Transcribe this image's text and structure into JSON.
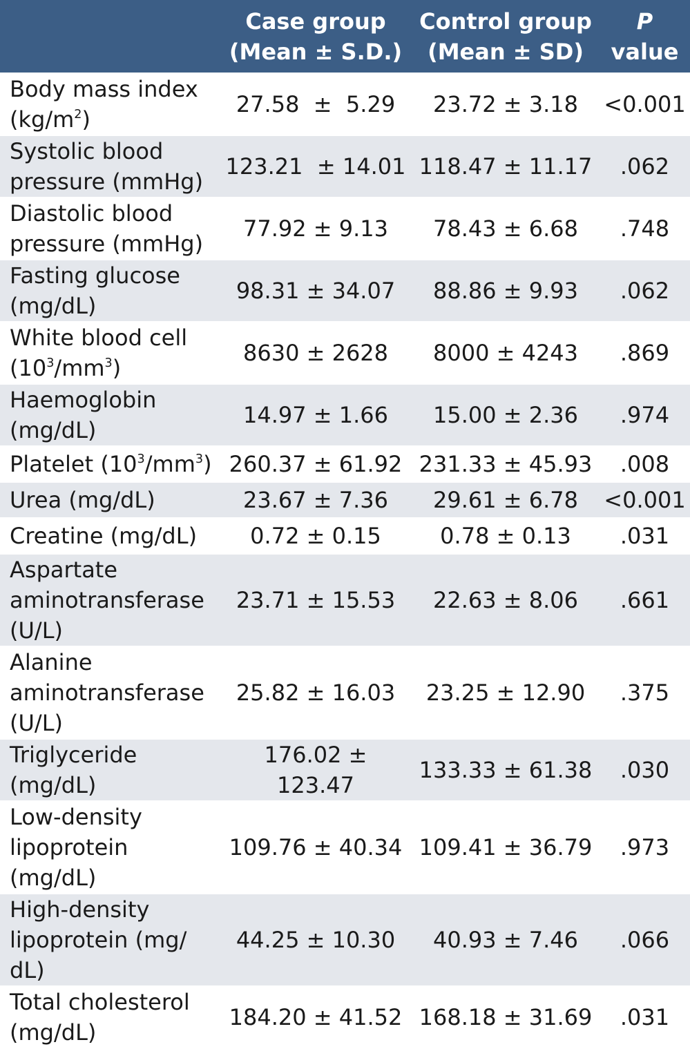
{
  "header": {
    "col0": "",
    "case_line1": "Case group",
    "case_line2": "(Mean ± S.D.)",
    "control_line1": "Control group",
    "control_line2": "(Mean  ± SD)",
    "p_line1": "P",
    "p_line2": "value"
  },
  "rows": [
    {
      "label": "Body mass index (kg/m²)",
      "case": "27.58  ±  5.29",
      "control": "23.72 ± 3.18",
      "p": "<0.001"
    },
    {
      "label": "Systolic blood pressure (mmHg)",
      "case": "123.21  ± 14.01",
      "control": "118.47 ± 11.17",
      "p": ".062"
    },
    {
      "label": "Diastolic blood pressure (mmHg)",
      "case": "77.92 ± 9.13",
      "control": "78.43 ± 6.68",
      "p": ".748"
    },
    {
      "label": "Fasting glucose (mg/dL)",
      "case": "98.31 ± 34.07",
      "control": "88.86 ± 9.93",
      "p": ".062"
    },
    {
      "label": "White blood cell (10³/mm³)",
      "case": "8630 ± 2628",
      "control": "8000 ± 4243",
      "p": ".869"
    },
    {
      "label": "Haemoglobin (mg/dL)",
      "case": "14.97 ± 1.66",
      "control": "15.00 ± 2.36",
      "p": ".974"
    },
    {
      "label": "Platelet (10³/mm³)",
      "case": "260.37 ± 61.92",
      "control": "231.33 ± 45.93",
      "p": ".008"
    },
    {
      "label": "Urea (mg/dL)",
      "case": "23.67 ± 7.36",
      "control": "29.61 ± 6.78",
      "p": "<0.001"
    },
    {
      "label": "Creatine (mg/dL)",
      "case": "0.72 ± 0.15",
      "control": "0.78 ± 0.13",
      "p": ".031"
    },
    {
      "label": "Aspartate aminotransferase (U/L)",
      "case": "23.71 ± 15.53",
      "control": "22.63 ± 8.06",
      "p": ".661"
    },
    {
      "label": "Alanine aminotransferase (U/L)",
      "case": "25.82 ± 16.03",
      "control": "23.25 ± 12.90",
      "p": ".375"
    },
    {
      "label": "Triglyceride (mg/dL)",
      "case": "176.02 ± 123.47",
      "control": "133.33 ± 61.38",
      "p": ".030"
    },
    {
      "label": "Low-density lipoprotein (mg/dL)",
      "case": "109.76 ± 40.34",
      "control": "109.41 ± 36.79",
      "p": ".973"
    },
    {
      "label": "High-density lipoprotein (mg/ dL)",
      "case": "44.25 ± 10.30",
      "control": "40.93 ± 7.46",
      "p": ".066"
    },
    {
      "label": "Total cholesterol (mg/dL)",
      "case": "184.20 ± 41.52",
      "control": "168.18 ± 31.69",
      "p": ".031"
    }
  ]
}
